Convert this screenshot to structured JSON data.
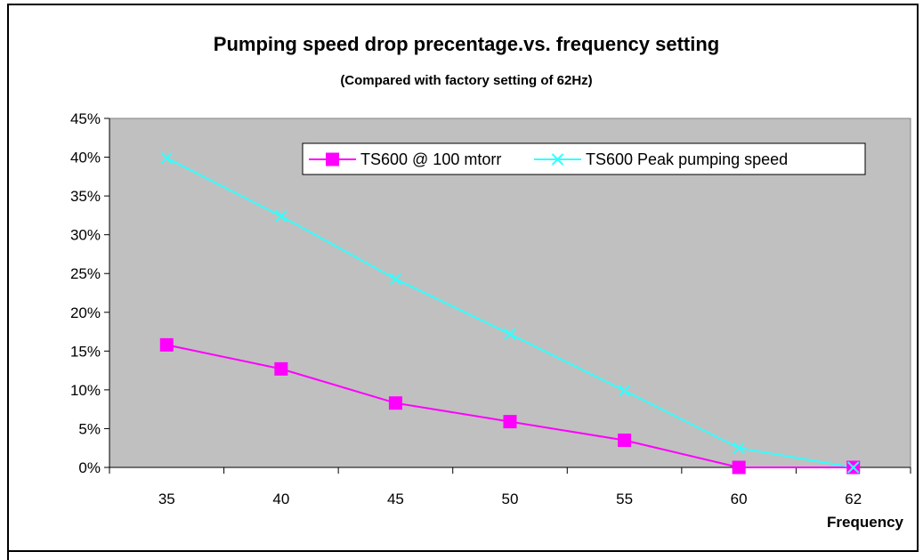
{
  "chart_data": {
    "type": "line",
    "title": "Pumping speed drop precentage.vs. frequency setting",
    "subtitle": "(Compared with factory setting of 62Hz)",
    "xlabel": "Frequency",
    "ylabel": "",
    "categories": [
      "35",
      "40",
      "45",
      "50",
      "55",
      "60",
      "62"
    ],
    "y_ticks": [
      "0%",
      "5%",
      "10%",
      "15%",
      "20%",
      "25%",
      "30%",
      "35%",
      "40%",
      "45%"
    ],
    "ylim": [
      0,
      45
    ],
    "y_unit": "%",
    "grid": false,
    "plot_background": "#c0c0c0",
    "legend_position": "top-right",
    "series": [
      {
        "name": "TS600 @ 100 mtorr",
        "values": [
          15.8,
          12.7,
          8.3,
          5.9,
          3.5,
          0,
          0
        ],
        "color": "#ff00ff",
        "marker": "square"
      },
      {
        "name": "TS600 Peak pumping speed",
        "values": [
          39.9,
          32.4,
          24.3,
          17.2,
          9.9,
          2.5,
          0
        ],
        "color": "#33ffff",
        "marker": "x"
      }
    ]
  }
}
